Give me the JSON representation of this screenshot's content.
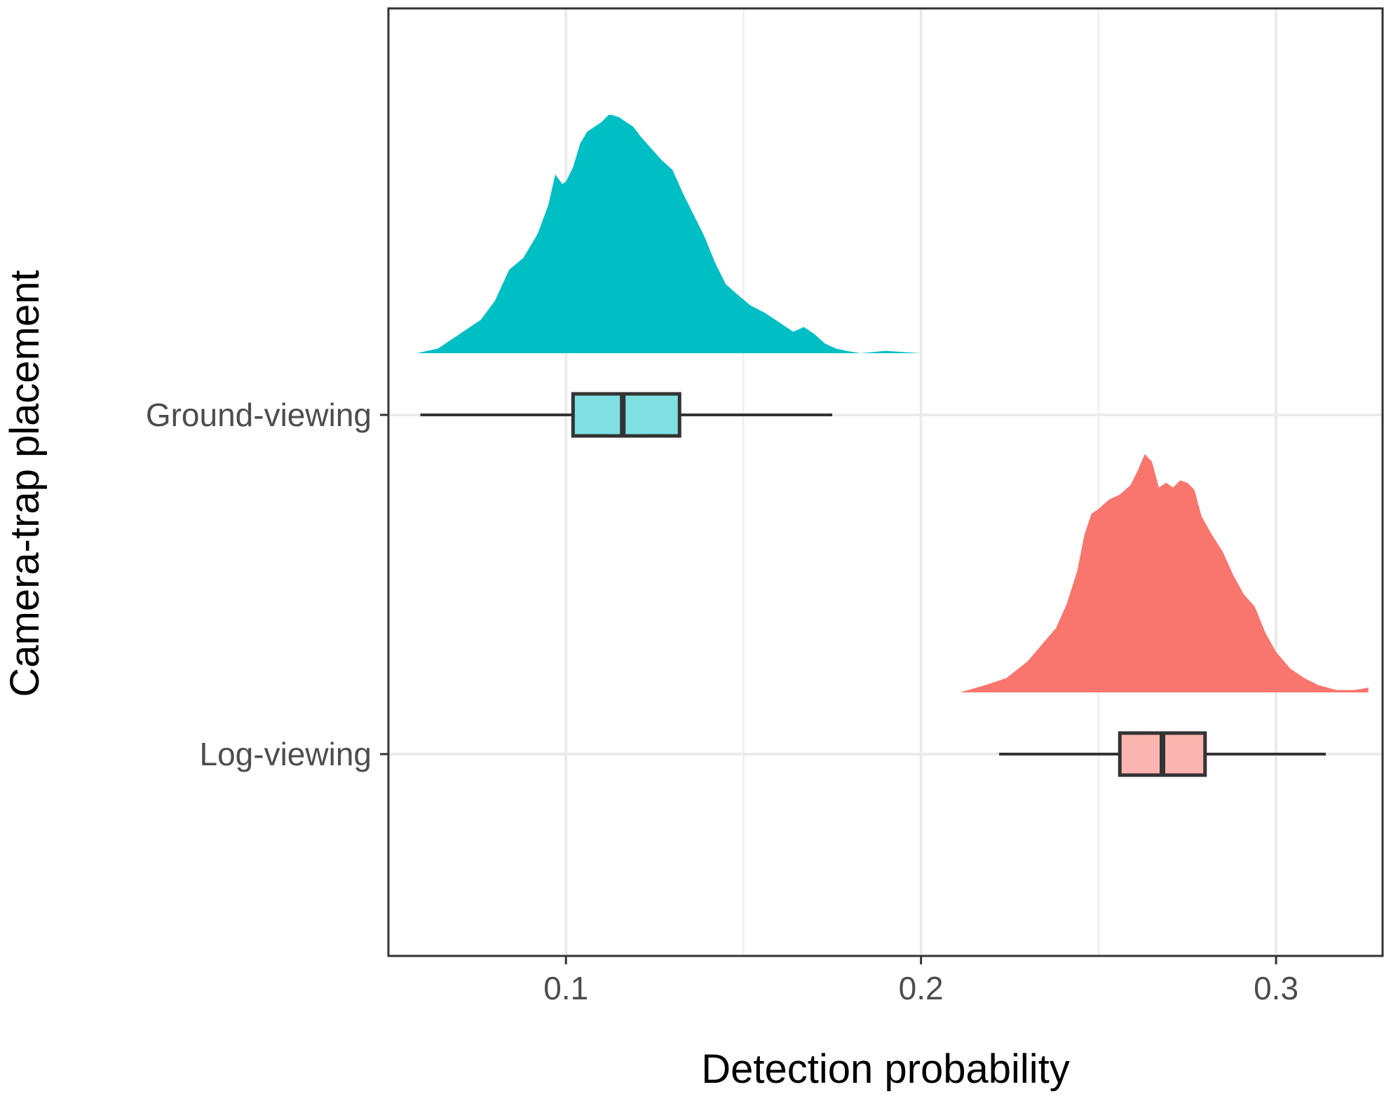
{
  "chart_data": {
    "type": "raincloud",
    "title": "",
    "xlabel": "Detection probability",
    "ylabel": "Camera-trap placement",
    "xlim": [
      0.05,
      0.33
    ],
    "x_ticks": [
      0.1,
      0.2,
      0.3
    ],
    "x_tick_labels": [
      "0.1",
      "0.2",
      "0.3"
    ],
    "grid": true,
    "legend": "none",
    "categories": [
      "Ground-viewing",
      "Log-viewing"
    ],
    "series": [
      {
        "category": "Ground-viewing",
        "color": "#00BFC4",
        "box_fill": "#7FDFE1",
        "boxplot": {
          "whisker_low": 0.059,
          "q1": 0.102,
          "median": 0.116,
          "q3": 0.132,
          "whisker_high": 0.175
        },
        "density": {
          "x": [
            0.058,
            0.064,
            0.068,
            0.072,
            0.076,
            0.08,
            0.084,
            0.088,
            0.092,
            0.095,
            0.097,
            0.099,
            0.1,
            0.102,
            0.104,
            0.106,
            0.108,
            0.11,
            0.112,
            0.113,
            0.115,
            0.117,
            0.119,
            0.121,
            0.124,
            0.127,
            0.13,
            0.133,
            0.136,
            0.139,
            0.142,
            0.145,
            0.148,
            0.152,
            0.156,
            0.16,
            0.164,
            0.167,
            0.17,
            0.173,
            0.176,
            0.179,
            0.183,
            0.19,
            0.2,
            0.214
          ],
          "density": [
            0.0,
            0.02,
            0.06,
            0.1,
            0.14,
            0.22,
            0.35,
            0.4,
            0.5,
            0.62,
            0.75,
            0.71,
            0.72,
            0.78,
            0.88,
            0.93,
            0.95,
            0.97,
            1.0,
            1.0,
            0.99,
            0.97,
            0.95,
            0.91,
            0.86,
            0.81,
            0.77,
            0.67,
            0.58,
            0.49,
            0.38,
            0.29,
            0.25,
            0.2,
            0.17,
            0.13,
            0.09,
            0.11,
            0.08,
            0.04,
            0.02,
            0.01,
            0.0,
            0.01,
            0.0,
            0.0
          ]
        }
      },
      {
        "category": "Log-viewing",
        "color": "#F8766D",
        "box_fill": "#FBB5B0",
        "boxplot": {
          "whisker_low": 0.222,
          "q1": 0.256,
          "median": 0.268,
          "q3": 0.28,
          "whisker_high": 0.314
        },
        "density": {
          "x": [
            0.211,
            0.218,
            0.224,
            0.23,
            0.234,
            0.238,
            0.241,
            0.244,
            0.246,
            0.248,
            0.25,
            0.253,
            0.256,
            0.259,
            0.261,
            0.263,
            0.265,
            0.267,
            0.269,
            0.271,
            0.273,
            0.275,
            0.277,
            0.279,
            0.282,
            0.285,
            0.288,
            0.291,
            0.294,
            0.297,
            0.3,
            0.304,
            0.308,
            0.312,
            0.317,
            0.322,
            0.326
          ],
          "density": [
            0.0,
            0.03,
            0.06,
            0.13,
            0.2,
            0.27,
            0.37,
            0.51,
            0.66,
            0.75,
            0.77,
            0.81,
            0.83,
            0.87,
            0.93,
            1.0,
            0.97,
            0.86,
            0.88,
            0.86,
            0.89,
            0.88,
            0.85,
            0.74,
            0.66,
            0.59,
            0.49,
            0.41,
            0.36,
            0.25,
            0.17,
            0.1,
            0.06,
            0.03,
            0.01,
            0.01,
            0.02
          ]
        }
      }
    ]
  }
}
